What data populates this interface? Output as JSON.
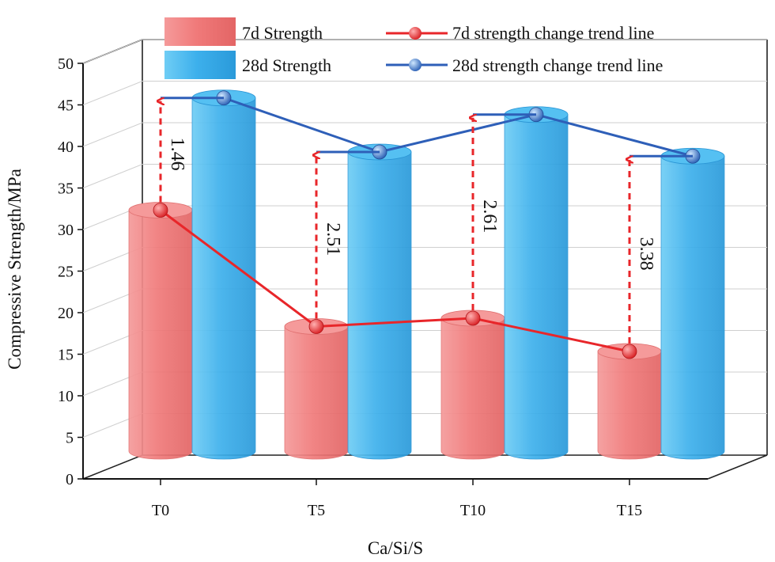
{
  "chart_data": {
    "type": "bar",
    "title": "",
    "xlabel": "Ca/Si/S",
    "ylabel": "Compressive Strength/MPa",
    "ylim": [
      0,
      50
    ],
    "yticks": [
      0,
      5,
      10,
      15,
      20,
      25,
      30,
      35,
      40,
      45,
      50
    ],
    "categories": [
      "T0",
      "T5",
      "T10",
      "T15"
    ],
    "series": [
      {
        "name": "7d Strength",
        "values": [
          29,
          15,
          16,
          12
        ],
        "color": "#f07878"
      },
      {
        "name": "28d Strength",
        "values": [
          42.5,
          36,
          40.5,
          35.5
        ],
        "color": "#3fb0ea"
      }
    ],
    "trend_lines": [
      {
        "name": "7d strength change trend line",
        "values": [
          29,
          15,
          16,
          12
        ],
        "color": "#e8262a"
      },
      {
        "name": "28d strength change trend line",
        "values": [
          42.5,
          36,
          40.5,
          35.5
        ],
        "color": "#2e5fb8"
      }
    ],
    "ratio_annotations": [
      "1.46",
      "2.51",
      "2.61",
      "3.38"
    ],
    "legend_position": "top"
  }
}
